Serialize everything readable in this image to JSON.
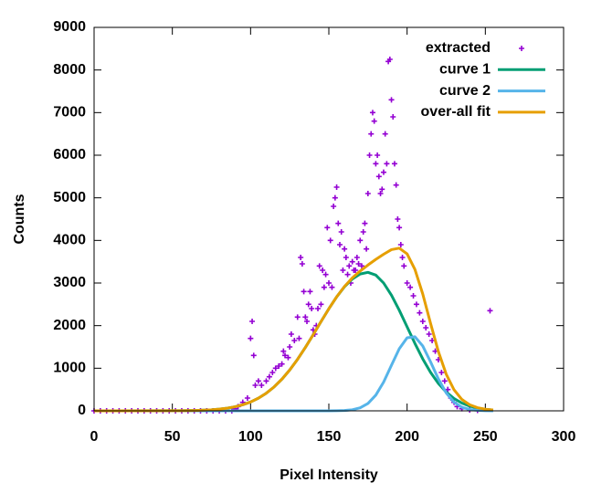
{
  "chart_data": {
    "type": "line",
    "xlabel": "Pixel Intensity",
    "ylabel": "Counts",
    "xlim": [
      0,
      300
    ],
    "ylim": [
      0,
      9000
    ],
    "xticks": [
      0,
      50,
      100,
      150,
      200,
      250,
      300
    ],
    "yticks": [
      0,
      1000,
      2000,
      3000,
      4000,
      5000,
      6000,
      7000,
      8000,
      9000
    ],
    "legend": "upper right",
    "series": [
      {
        "name": "extracted",
        "type": "scatter",
        "color": "#9400d3",
        "x": [
          0,
          4,
          8,
          12,
          16,
          20,
          24,
          28,
          32,
          36,
          40,
          44,
          48,
          52,
          56,
          60,
          64,
          68,
          72,
          76,
          80,
          84,
          88,
          90,
          92,
          95,
          98,
          100,
          101,
          102,
          103,
          105,
          107,
          110,
          112,
          114,
          116,
          118,
          120,
          121,
          122,
          124,
          125,
          126,
          128,
          130,
          131,
          132,
          133,
          134,
          135,
          136,
          137,
          138,
          139,
          140,
          141,
          142,
          143,
          144,
          145,
          146,
          147,
          148,
          149,
          150,
          151,
          152,
          153,
          154,
          155,
          156,
          157,
          158,
          159,
          160,
          161,
          162,
          163,
          164,
          165,
          166,
          167,
          168,
          169,
          170,
          171,
          172,
          173,
          174,
          175,
          176,
          177,
          178,
          179,
          180,
          181,
          182,
          183,
          184,
          185,
          186,
          187,
          188,
          189,
          190,
          191,
          192,
          193,
          194,
          195,
          196,
          197,
          198,
          200,
          202,
          204,
          206,
          208,
          210,
          212,
          214,
          216,
          218,
          220,
          222,
          224,
          226,
          228,
          230,
          232,
          235,
          240,
          245,
          253
        ],
        "values": [
          0,
          0,
          0,
          0,
          0,
          0,
          0,
          0,
          0,
          0,
          0,
          0,
          0,
          0,
          0,
          0,
          0,
          0,
          0,
          0,
          0,
          0,
          0,
          50,
          100,
          200,
          300,
          1700,
          2100,
          1300,
          600,
          700,
          600,
          700,
          800,
          900,
          1000,
          1050,
          1100,
          1400,
          1300,
          1250,
          1500,
          1800,
          1650,
          2200,
          1700,
          3600,
          3450,
          2800,
          2200,
          2100,
          2500,
          2800,
          2400,
          1900,
          1800,
          2000,
          2400,
          3400,
          2500,
          3300,
          2900,
          3200,
          4300,
          3000,
          4000,
          2900,
          4800,
          5000,
          5250,
          4400,
          3900,
          4200,
          3300,
          3800,
          3600,
          3200,
          3400,
          3000,
          3500,
          3300,
          3300,
          3600,
          3450,
          4000,
          3400,
          4200,
          4400,
          3800,
          5100,
          6000,
          6500,
          7000,
          6800,
          5800,
          6000,
          5500,
          5100,
          5200,
          5600,
          6500,
          5800,
          8200,
          8250,
          7300,
          6900,
          5800,
          5300,
          4500,
          4300,
          3900,
          3600,
          3400,
          3000,
          2900,
          2700,
          2500,
          2300,
          2100,
          1950,
          1800,
          1650,
          1400,
          1200,
          900,
          700,
          500,
          300,
          200,
          100,
          50,
          20,
          10,
          2350
        ]
      },
      {
        "name": "curve 1",
        "type": "line",
        "color": "#009e73",
        "x": [
          0,
          50,
          55,
          60,
          65,
          70,
          75,
          80,
          85,
          90,
          95,
          100,
          105,
          110,
          115,
          120,
          125,
          130,
          135,
          140,
          145,
          150,
          155,
          160,
          165,
          170,
          175,
          180,
          185,
          190,
          195,
          200,
          205,
          210,
          215,
          220,
          225,
          230,
          235,
          240,
          245,
          250,
          255
        ],
        "values": [
          0,
          2,
          3,
          5,
          9,
          15,
          25,
          40,
          62,
          95,
          143,
          208,
          297,
          413,
          560,
          742,
          959,
          1209,
          1488,
          1787,
          2095,
          2395,
          2674,
          2913,
          3095,
          3211,
          3250,
          3186,
          3000,
          2715,
          2361,
          1971,
          1582,
          1220,
          903,
          643,
          440,
          289,
          182,
          111,
          64,
          36,
          19
        ]
      },
      {
        "name": "curve 2",
        "type": "line",
        "color": "#56b4e9",
        "x": [
          0,
          50,
          55,
          60,
          65,
          70,
          75,
          80,
          85,
          90,
          95,
          100,
          105,
          110,
          115,
          120,
          125,
          130,
          135,
          140,
          145,
          150,
          155,
          160,
          165,
          170,
          175,
          180,
          185,
          190,
          195,
          200,
          205,
          210,
          215,
          220,
          225,
          230,
          235,
          240,
          245,
          250,
          255
        ],
        "values": [
          0,
          0,
          0,
          0,
          0,
          0,
          0,
          0,
          0,
          0,
          0,
          0,
          0,
          0,
          0,
          0,
          0,
          0,
          0,
          0,
          0,
          0,
          2,
          7,
          25,
          70,
          173,
          368,
          675,
          1068,
          1457,
          1714,
          1739,
          1523,
          1149,
          748,
          420,
          204,
          85,
          31,
          10,
          3,
          1
        ]
      },
      {
        "name": "over-all fit",
        "type": "line",
        "color": "#e69f00",
        "x": [
          0,
          50,
          55,
          60,
          65,
          70,
          75,
          80,
          85,
          90,
          95,
          100,
          105,
          110,
          115,
          120,
          125,
          130,
          135,
          140,
          145,
          150,
          155,
          160,
          165,
          170,
          175,
          180,
          185,
          190,
          195,
          200,
          205,
          210,
          215,
          220,
          225,
          230,
          235,
          240,
          245,
          250,
          255
        ],
        "values": [
          0,
          2,
          3,
          5,
          9,
          15,
          25,
          40,
          62,
          95,
          143,
          208,
          297,
          413,
          560,
          742,
          959,
          1209,
          1488,
          1787,
          2095,
          2395,
          2676,
          2920,
          3120,
          3281,
          3423,
          3554,
          3675,
          3783,
          3818,
          3685,
          3321,
          2743,
          2052,
          1391,
          860,
          493,
          267,
          142,
          74,
          39,
          20
        ]
      }
    ]
  }
}
